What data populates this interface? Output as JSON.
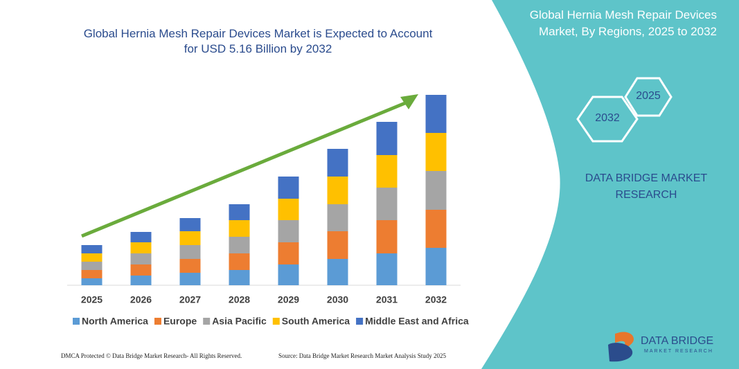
{
  "chart_data": {
    "type": "bar",
    "stacked": true,
    "title": "Global Hernia Mesh Repair Devices Market is Expected to Account for USD 5.16 Billion by 2032",
    "categories": [
      "2025",
      "2026",
      "2027",
      "2028",
      "2029",
      "2030",
      "2031",
      "2032"
    ],
    "series": [
      {
        "name": "North America",
        "color": "#5b9bd5",
        "values": [
          10,
          14,
          18,
          22,
          30,
          38,
          46,
          54
        ]
      },
      {
        "name": "Europe",
        "color": "#ed7d31",
        "values": [
          12,
          16,
          20,
          24,
          32,
          40,
          48,
          55
        ]
      },
      {
        "name": "Asia Pacific",
        "color": "#a5a5a5",
        "values": [
          12,
          16,
          20,
          24,
          32,
          39,
          47,
          56
        ]
      },
      {
        "name": "South America",
        "color": "#ffc000",
        "values": [
          12,
          16,
          20,
          24,
          31,
          40,
          47,
          55
        ]
      },
      {
        "name": "Middle East and Africa",
        "color": "#4472c4",
        "values": [
          12,
          15,
          19,
          23,
          32,
          40,
          48,
          55
        ]
      }
    ]
  },
  "panel": {
    "title": "Global Hernia Mesh Repair Devices Market, By Regions, 2025 to 2032",
    "hex_left": "2032",
    "hex_right": "2025",
    "brand": "DATA BRIDGE MARKET RESEARCH"
  },
  "footer": {
    "left": "DMCA Protected © Data Bridge Market Research- All Rights Reserved.",
    "right": "Source: Data Bridge Market Research Market Analysis Study 2025"
  },
  "logo": {
    "name": "DATA BRIDGE",
    "tagline": "MARKET RESEARCH"
  }
}
